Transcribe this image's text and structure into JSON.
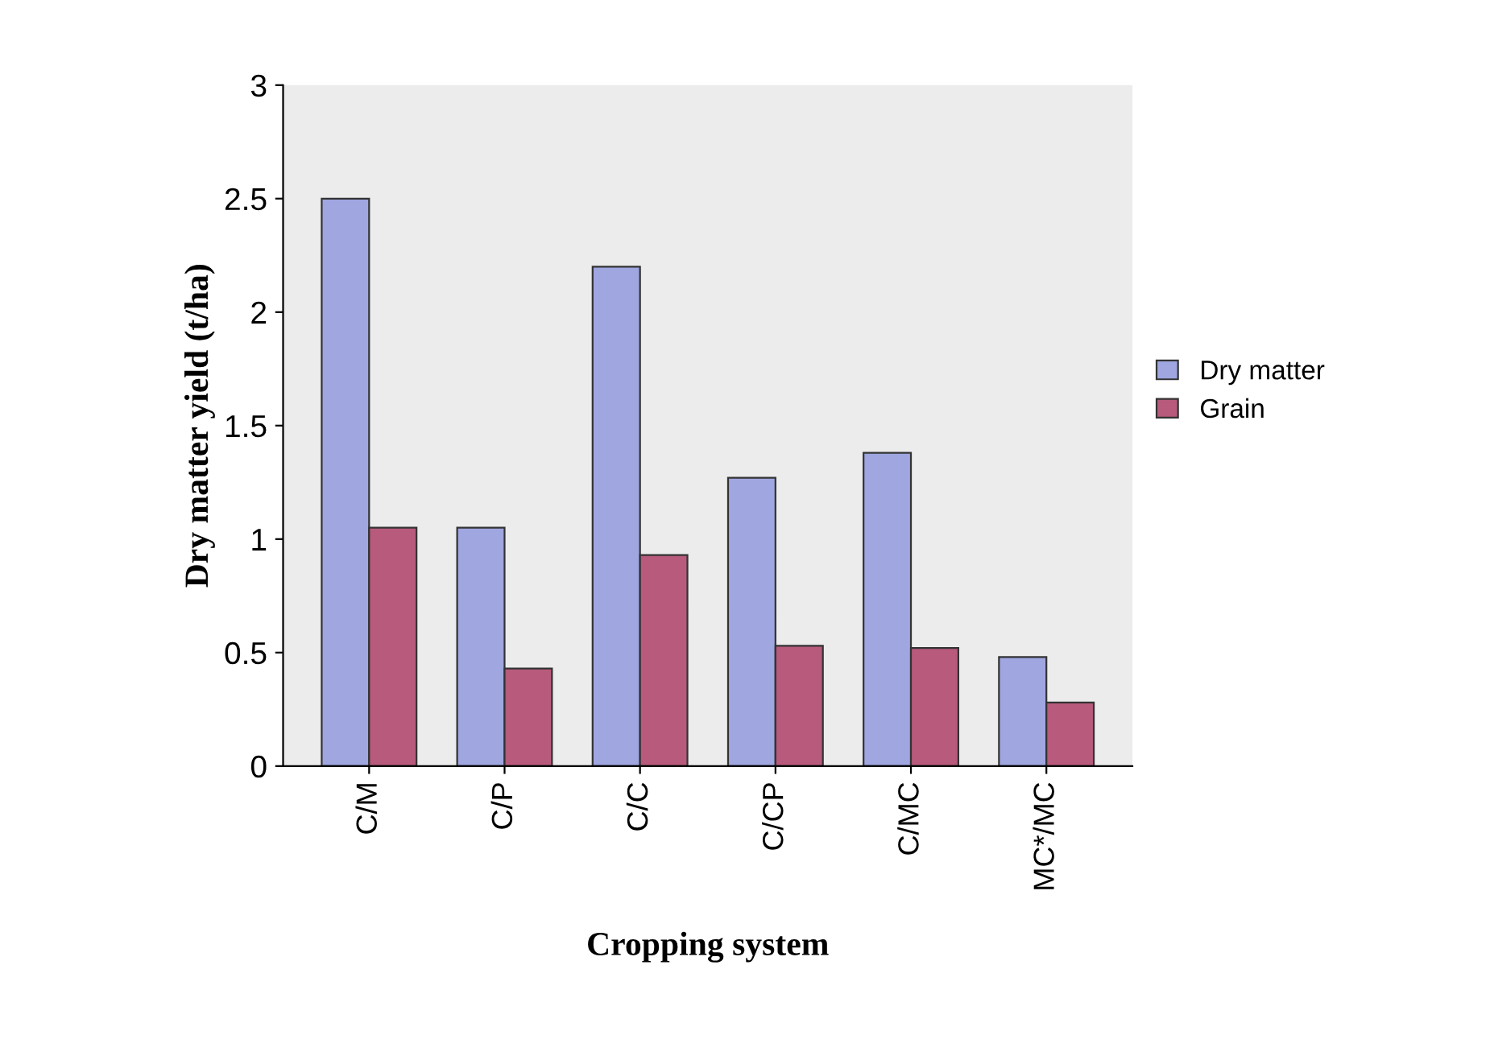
{
  "chart_data": {
    "type": "bar",
    "xlabel": "Cropping system",
    "ylabel": "Dry matter yield (t/ha)",
    "categories": [
      "C/M",
      "C/P",
      "C/C",
      "C/CP",
      "C/MC",
      "MC*/MC"
    ],
    "series": [
      {
        "name": "Dry matter",
        "color": "#9fa6e0",
        "values": [
          2.5,
          1.05,
          2.2,
          1.27,
          1.38,
          0.48
        ]
      },
      {
        "name": "Grain",
        "color": "#b85a7c",
        "values": [
          1.05,
          0.43,
          0.93,
          0.53,
          0.52,
          0.28
        ]
      }
    ],
    "ylim": [
      0,
      3
    ],
    "yticks": [
      0,
      0.5,
      1,
      1.5,
      2,
      2.5,
      3
    ],
    "grid": false,
    "legend": "right"
  }
}
